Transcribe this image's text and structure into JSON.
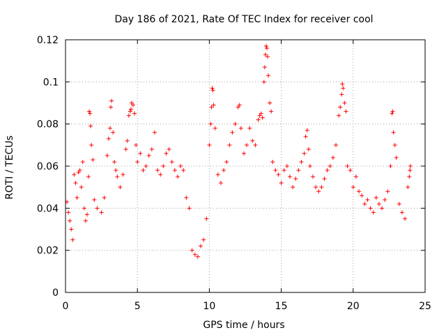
{
  "chart_data": {
    "type": "scatter",
    "title": "Day 186 of 2021, Rate Of TEC Index for receiver cool",
    "xlabel": "GPS time / hours",
    "ylabel": "ROTI / TECUs",
    "xlim": [
      0,
      25
    ],
    "ylim": [
      0,
      0.12
    ],
    "xticks": [
      0,
      5,
      10,
      15,
      20,
      25
    ],
    "xtick_labels": [
      "0",
      "5",
      "10",
      "15",
      "20",
      "25"
    ],
    "yticks": [
      0,
      0.02,
      0.04,
      0.06,
      0.08,
      0.1,
      0.12
    ],
    "ytick_labels": [
      "0",
      "0.02",
      "0.04",
      "0.06",
      "0.08",
      "0.1",
      "0.12"
    ],
    "grid": true,
    "marker": "+",
    "color": "#ff0000",
    "series": [
      {
        "name": "ROTI",
        "points": [
          [
            0.1,
            0.043
          ],
          [
            0.2,
            0.038
          ],
          [
            0.3,
            0.034
          ],
          [
            0.4,
            0.03
          ],
          [
            0.5,
            0.025
          ],
          [
            0.6,
            0.056
          ],
          [
            0.7,
            0.052
          ],
          [
            0.8,
            0.045
          ],
          [
            0.9,
            0.057
          ],
          [
            1.0,
            0.058
          ],
          [
            1.1,
            0.05
          ],
          [
            1.2,
            0.062
          ],
          [
            1.3,
            0.04
          ],
          [
            1.4,
            0.034
          ],
          [
            1.5,
            0.037
          ],
          [
            1.6,
            0.055
          ],
          [
            1.65,
            0.086
          ],
          [
            1.7,
            0.085
          ],
          [
            1.75,
            0.079
          ],
          [
            1.8,
            0.07
          ],
          [
            1.9,
            0.063
          ],
          [
            2.0,
            0.044
          ],
          [
            2.2,
            0.04
          ],
          [
            2.5,
            0.038
          ],
          [
            2.7,
            0.045
          ],
          [
            2.9,
            0.065
          ],
          [
            3.0,
            0.073
          ],
          [
            3.1,
            0.078
          ],
          [
            3.15,
            0.088
          ],
          [
            3.2,
            0.091
          ],
          [
            3.3,
            0.076
          ],
          [
            3.4,
            0.062
          ],
          [
            3.5,
            0.058
          ],
          [
            3.6,
            0.055
          ],
          [
            3.8,
            0.05
          ],
          [
            4.0,
            0.056
          ],
          [
            4.2,
            0.068
          ],
          [
            4.3,
            0.072
          ],
          [
            4.4,
            0.084
          ],
          [
            4.5,
            0.086
          ],
          [
            4.55,
            0.087
          ],
          [
            4.6,
            0.09
          ],
          [
            4.7,
            0.089
          ],
          [
            4.8,
            0.085
          ],
          [
            4.9,
            0.07
          ],
          [
            5.0,
            0.062
          ],
          [
            5.2,
            0.066
          ],
          [
            5.4,
            0.058
          ],
          [
            5.6,
            0.06
          ],
          [
            5.8,
            0.065
          ],
          [
            6.0,
            0.068
          ],
          [
            6.2,
            0.076
          ],
          [
            6.4,
            0.058
          ],
          [
            6.6,
            0.056
          ],
          [
            6.8,
            0.06
          ],
          [
            7.0,
            0.066
          ],
          [
            7.2,
            0.068
          ],
          [
            7.4,
            0.062
          ],
          [
            7.6,
            0.058
          ],
          [
            7.8,
            0.055
          ],
          [
            8.0,
            0.06
          ],
          [
            8.2,
            0.058
          ],
          [
            8.4,
            0.045
          ],
          [
            8.6,
            0.04
          ],
          [
            8.8,
            0.02
          ],
          [
            9.0,
            0.018
          ],
          [
            9.2,
            0.017
          ],
          [
            9.4,
            0.022
          ],
          [
            9.6,
            0.025
          ],
          [
            9.8,
            0.035
          ],
          [
            10.0,
            0.07
          ],
          [
            10.1,
            0.08
          ],
          [
            10.15,
            0.088
          ],
          [
            10.2,
            0.097
          ],
          [
            10.25,
            0.096
          ],
          [
            10.3,
            0.089
          ],
          [
            10.4,
            0.078
          ],
          [
            10.6,
            0.056
          ],
          [
            10.8,
            0.052
          ],
          [
            11.0,
            0.058
          ],
          [
            11.2,
            0.062
          ],
          [
            11.4,
            0.07
          ],
          [
            11.6,
            0.076
          ],
          [
            11.8,
            0.08
          ],
          [
            12.0,
            0.088
          ],
          [
            12.1,
            0.089
          ],
          [
            12.2,
            0.078
          ],
          [
            12.4,
            0.066
          ],
          [
            12.6,
            0.07
          ],
          [
            12.8,
            0.078
          ],
          [
            13.0,
            0.072
          ],
          [
            13.2,
            0.07
          ],
          [
            13.4,
            0.082
          ],
          [
            13.5,
            0.084
          ],
          [
            13.6,
            0.085
          ],
          [
            13.7,
            0.083
          ],
          [
            13.8,
            0.1
          ],
          [
            13.85,
            0.107
          ],
          [
            13.9,
            0.113
          ],
          [
            13.95,
            0.117
          ],
          [
            14.0,
            0.116
          ],
          [
            14.05,
            0.112
          ],
          [
            14.1,
            0.103
          ],
          [
            14.2,
            0.09
          ],
          [
            14.3,
            0.086
          ],
          [
            14.4,
            0.062
          ],
          [
            14.6,
            0.058
          ],
          [
            14.8,
            0.056
          ],
          [
            15.0,
            0.052
          ],
          [
            15.2,
            0.058
          ],
          [
            15.4,
            0.06
          ],
          [
            15.6,
            0.055
          ],
          [
            15.8,
            0.05
          ],
          [
            16.0,
            0.054
          ],
          [
            16.2,
            0.058
          ],
          [
            16.4,
            0.062
          ],
          [
            16.6,
            0.066
          ],
          [
            16.7,
            0.074
          ],
          [
            16.8,
            0.077
          ],
          [
            16.9,
            0.068
          ],
          [
            17.0,
            0.06
          ],
          [
            17.2,
            0.055
          ],
          [
            17.4,
            0.05
          ],
          [
            17.6,
            0.048
          ],
          [
            17.8,
            0.05
          ],
          [
            18.0,
            0.054
          ],
          [
            18.2,
            0.058
          ],
          [
            18.4,
            0.06
          ],
          [
            18.6,
            0.064
          ],
          [
            18.8,
            0.07
          ],
          [
            19.0,
            0.084
          ],
          [
            19.1,
            0.088
          ],
          [
            19.2,
            0.094
          ],
          [
            19.25,
            0.099
          ],
          [
            19.3,
            0.097
          ],
          [
            19.4,
            0.09
          ],
          [
            19.5,
            0.086
          ],
          [
            19.6,
            0.06
          ],
          [
            19.8,
            0.058
          ],
          [
            20.0,
            0.05
          ],
          [
            20.2,
            0.055
          ],
          [
            20.4,
            0.048
          ],
          [
            20.6,
            0.046
          ],
          [
            20.8,
            0.042
          ],
          [
            21.0,
            0.044
          ],
          [
            21.2,
            0.04
          ],
          [
            21.4,
            0.038
          ],
          [
            21.6,
            0.045
          ],
          [
            21.8,
            0.042
          ],
          [
            22.0,
            0.04
          ],
          [
            22.2,
            0.044
          ],
          [
            22.4,
            0.048
          ],
          [
            22.6,
            0.06
          ],
          [
            22.7,
            0.085
          ],
          [
            22.75,
            0.086
          ],
          [
            22.8,
            0.076
          ],
          [
            22.9,
            0.07
          ],
          [
            23.0,
            0.064
          ],
          [
            23.2,
            0.042
          ],
          [
            23.4,
            0.038
          ],
          [
            23.6,
            0.035
          ],
          [
            23.8,
            0.05
          ],
          [
            23.9,
            0.055
          ],
          [
            23.95,
            0.058
          ],
          [
            23.98,
            0.06
          ]
        ]
      }
    ]
  }
}
